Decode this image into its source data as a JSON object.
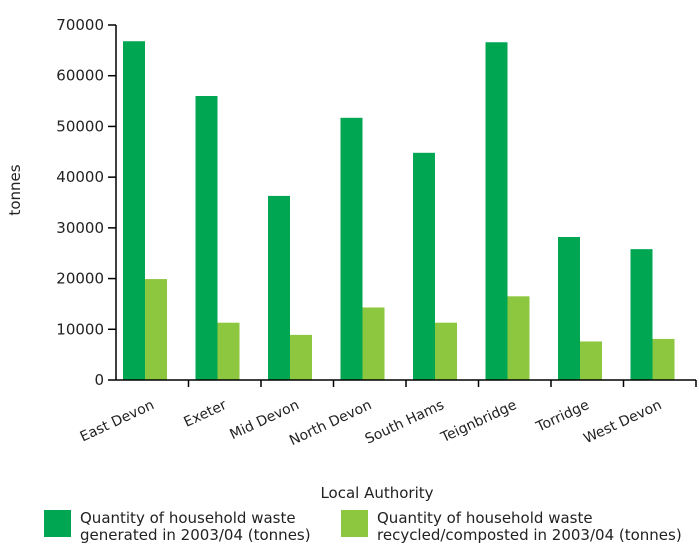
{
  "chart_data": {
    "type": "bar",
    "xlabel": "Local Authority",
    "ylabel": "tonnes",
    "ylim": [
      0,
      70000
    ],
    "yticks": [
      0,
      10000,
      20000,
      30000,
      40000,
      50000,
      60000,
      70000
    ],
    "grid": false,
    "legend_position": "bottom",
    "categories": [
      "East Devon",
      "Exeter",
      "Mid Devon",
      "North Devon",
      "South Hams",
      "Teignbridge",
      "Torridge",
      "West Devon"
    ],
    "series": [
      {
        "name": "Quantity of household waste generated in 2003/04 (tonnes)",
        "name_lines": [
          "Quantity of household waste",
          "generated in 2003/04 (tonnes)"
        ],
        "color": "#00a651",
        "values": [
          66800,
          56000,
          36300,
          51700,
          44800,
          66600,
          28200,
          25800
        ]
      },
      {
        "name": "Quantity of household waste recycled/composted in 2003/04 (tonnes)",
        "name_lines": [
          "Quantity of household waste",
          "recycled/composted in 2003/04 (tonnes)"
        ],
        "color": "#8dc63f",
        "values": [
          19900,
          11300,
          8900,
          14300,
          11300,
          16500,
          7600,
          8100
        ]
      }
    ]
  }
}
